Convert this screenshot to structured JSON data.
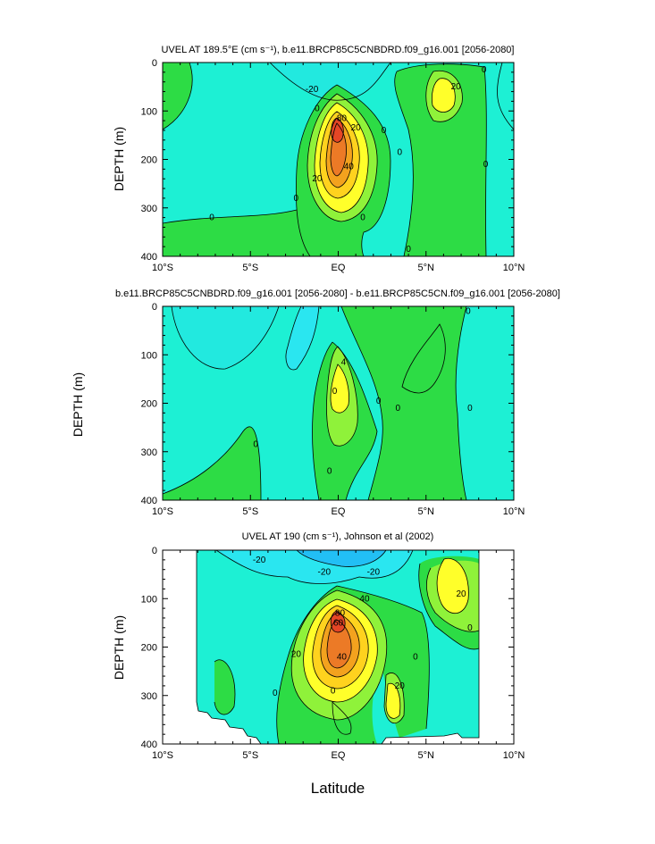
{
  "chart_data": [
    {
      "type": "contour",
      "title": "UVEL AT 189.5°E (cm s⁻¹), b.e11.BRCP85C5CNBDRD.f09_g16.001 [2056-2080]",
      "xlabel": "",
      "ylabel": "DEPTH (m)",
      "xlim": [
        -10,
        10
      ],
      "ylim": [
        400,
        0
      ],
      "x_ticks": [
        "10°S",
        "5°S",
        "EQ",
        "5°N",
        "10°N"
      ],
      "y_ticks": [
        "0",
        "100",
        "200",
        "300",
        "400"
      ],
      "contour_labels": [
        {
          "text": "-20",
          "x": -1.5,
          "y": 55
        },
        {
          "text": "0",
          "x": -1.2,
          "y": 95
        },
        {
          "text": "80",
          "x": 0.2,
          "y": 115
        },
        {
          "text": "20",
          "x": 1.0,
          "y": 135
        },
        {
          "text": "40",
          "x": 0.6,
          "y": 215
        },
        {
          "text": "20",
          "x": -1.2,
          "y": 240
        },
        {
          "text": "0",
          "x": 2.6,
          "y": 140
        },
        {
          "text": "0",
          "x": 3.5,
          "y": 185
        },
        {
          "text": "0",
          "x": 1.4,
          "y": 320
        },
        {
          "text": "0",
          "x": -2.4,
          "y": 280
        },
        {
          "text": "0",
          "x": -7.2,
          "y": 320
        },
        {
          "text": "0",
          "x": 4.0,
          "y": 385
        },
        {
          "text": "20",
          "x": 6.7,
          "y": 50
        },
        {
          "text": "0",
          "x": 8.3,
          "y": 15
        },
        {
          "text": "0",
          "x": 8.4,
          "y": 210
        }
      ]
    },
    {
      "type": "contour",
      "title": "b.e11.BRCP85C5CNBDRD.f09_g16.001 [2056-2080] - b.e11.BRCP85C5CN.f09_g16.001 [2056-2080]",
      "xlabel": "",
      "ylabel": "DEPTH (m)",
      "xlim": [
        -10,
        10
      ],
      "ylim": [
        400,
        0
      ],
      "x_ticks": [
        "10°S",
        "5°S",
        "EQ",
        "5°N",
        "10°N"
      ],
      "y_ticks": [
        "0",
        "100",
        "200",
        "300",
        "400"
      ],
      "contour_labels": [
        {
          "text": "4",
          "x": 0.3,
          "y": 115
        },
        {
          "text": "0",
          "x": -0.2,
          "y": 175
        },
        {
          "text": "0",
          "x": 2.3,
          "y": 195
        },
        {
          "text": "0",
          "x": 3.4,
          "y": 210
        },
        {
          "text": "0",
          "x": -4.7,
          "y": 285
        },
        {
          "text": "0",
          "x": -0.5,
          "y": 340
        },
        {
          "text": "0",
          "x": 7.4,
          "y": 10
        },
        {
          "text": "0",
          "x": 7.5,
          "y": 210
        }
      ]
    },
    {
      "type": "contour",
      "title": "UVEL AT 190 (cm s⁻¹), Johnson et al (2002)",
      "xlabel": "Latitude",
      "ylabel": "DEPTH (m)",
      "xlim": [
        -10,
        10
      ],
      "ylim": [
        400,
        0
      ],
      "x_ticks": [
        "10°S",
        "5°S",
        "EQ",
        "5°N",
        "10°N"
      ],
      "y_ticks": [
        "0",
        "100",
        "200",
        "300",
        "400"
      ],
      "contour_labels": [
        {
          "text": "-20",
          "x": -4.5,
          "y": 20
        },
        {
          "text": "-20",
          "x": -0.8,
          "y": 45
        },
        {
          "text": "-20",
          "x": 2.0,
          "y": 45
        },
        {
          "text": "80",
          "x": 0.1,
          "y": 130
        },
        {
          "text": "60",
          "x": 0.0,
          "y": 150
        },
        {
          "text": "40",
          "x": 1.5,
          "y": 100
        },
        {
          "text": "40",
          "x": 0.2,
          "y": 220
        },
        {
          "text": "20",
          "x": -2.4,
          "y": 215
        },
        {
          "text": "20",
          "x": 3.5,
          "y": 280
        },
        {
          "text": "0",
          "x": -3.6,
          "y": 295
        },
        {
          "text": "0",
          "x": -0.3,
          "y": 290
        },
        {
          "text": "0",
          "x": 4.4,
          "y": 220
        },
        {
          "text": "20",
          "x": 7.0,
          "y": 90
        },
        {
          "text": "0",
          "x": 7.5,
          "y": 160
        }
      ]
    }
  ]
}
